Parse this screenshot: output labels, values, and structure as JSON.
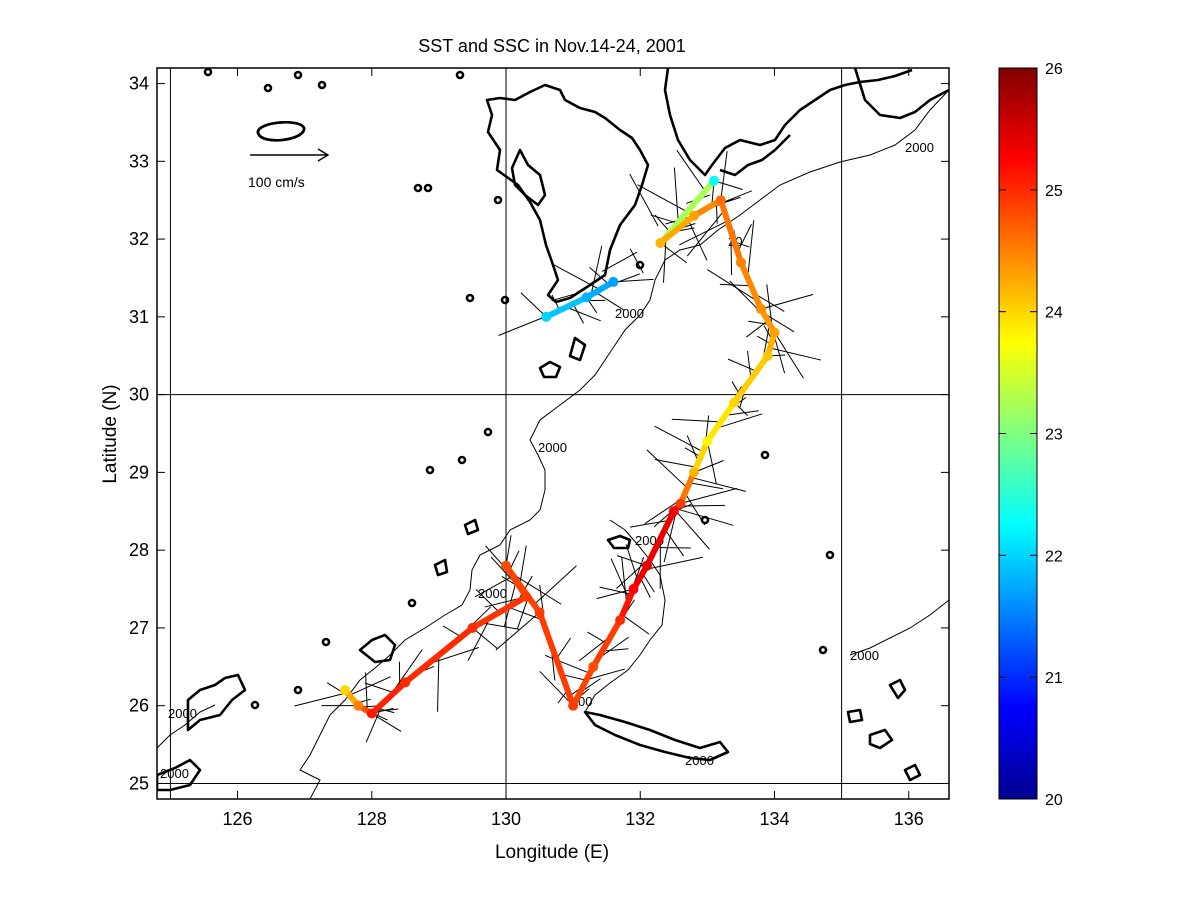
{
  "title": "SST and SSC in Nov.14-24, 2001",
  "xlabel": "Longitude (E)",
  "ylabel": "Latitude (N)",
  "x_ticks": [
    "126",
    "128",
    "130",
    "132",
    "134",
    "136"
  ],
  "y_ticks": [
    "25",
    "26",
    "27",
    "28",
    "29",
    "30",
    "31",
    "32",
    "33",
    "34"
  ],
  "colorbar_ticks": [
    "20",
    "21",
    "22",
    "23",
    "24",
    "25",
    "26"
  ],
  "scale_arrow_label": "100 cm/s",
  "contour_label": "2000",
  "contour_label_partial": "20",
  "contour_label_partial_2": "00",
  "colors": {
    "axis": "#000000",
    "coast": "#000000"
  },
  "chart_data": {
    "type": "map",
    "title": "SST and SSC in Nov.14-24, 2001",
    "xlabel": "Longitude (E)",
    "ylabel": "Latitude (N)",
    "xlim": [
      124.8,
      136.6
    ],
    "ylim": [
      24.8,
      34.2
    ],
    "colorbar": {
      "colormap": "jet",
      "range": [
        20,
        26
      ]
    },
    "grid_lines": {
      "lon": [
        125,
        130,
        135
      ],
      "lat": [
        25,
        30
      ]
    },
    "isobath_depth": 2000,
    "track": [
      {
        "lon": 131.6,
        "lat": 31.45,
        "sst": 21.7
      },
      {
        "lon": 131.2,
        "lat": 31.25,
        "sst": 21.8
      },
      {
        "lon": 130.6,
        "lat": 31.0,
        "sst": 22.0
      },
      {
        "lon": 133.1,
        "lat": 32.75,
        "sst": 22.3
      },
      {
        "lon": 132.3,
        "lat": 31.95,
        "sst": 24.2
      },
      {
        "lon": 132.8,
        "lat": 32.3,
        "sst": 24.3
      },
      {
        "lon": 133.2,
        "lat": 32.5,
        "sst": 24.6
      },
      {
        "lon": 133.5,
        "lat": 31.7,
        "sst": 24.5
      },
      {
        "lon": 133.8,
        "lat": 31.1,
        "sst": 24.4
      },
      {
        "lon": 134.0,
        "lat": 30.8,
        "sst": 24.3
      },
      {
        "lon": 133.9,
        "lat": 30.5,
        "sst": 24.1
      },
      {
        "lon": 133.4,
        "lat": 29.9,
        "sst": 24.0
      },
      {
        "lon": 133.0,
        "lat": 29.4,
        "sst": 23.8
      },
      {
        "lon": 132.8,
        "lat": 29.0,
        "sst": 24.2
      },
      {
        "lon": 132.6,
        "lat": 28.6,
        "sst": 24.9
      },
      {
        "lon": 132.5,
        "lat": 28.5,
        "sst": 25.3
      },
      {
        "lon": 132.1,
        "lat": 27.8,
        "sst": 25.4
      },
      {
        "lon": 131.9,
        "lat": 27.5,
        "sst": 25.3
      },
      {
        "lon": 131.7,
        "lat": 27.1,
        "sst": 25.0
      },
      {
        "lon": 131.3,
        "lat": 26.5,
        "sst": 24.8
      },
      {
        "lon": 131.0,
        "lat": 26.0,
        "sst": 24.9
      },
      {
        "lon": 130.5,
        "lat": 27.2,
        "sst": 24.9
      },
      {
        "lon": 130.0,
        "lat": 27.8,
        "sst": 24.8
      },
      {
        "lon": 130.3,
        "lat": 27.4,
        "sst": 24.9
      },
      {
        "lon": 129.5,
        "lat": 27.0,
        "sst": 25.0
      },
      {
        "lon": 128.5,
        "lat": 26.3,
        "sst": 25.0
      },
      {
        "lon": 128.0,
        "lat": 25.9,
        "sst": 25.1
      },
      {
        "lon": 127.8,
        "lat": 26.0,
        "sst": 24.5
      },
      {
        "lon": 127.6,
        "lat": 26.2,
        "sst": 24.0
      }
    ]
  }
}
